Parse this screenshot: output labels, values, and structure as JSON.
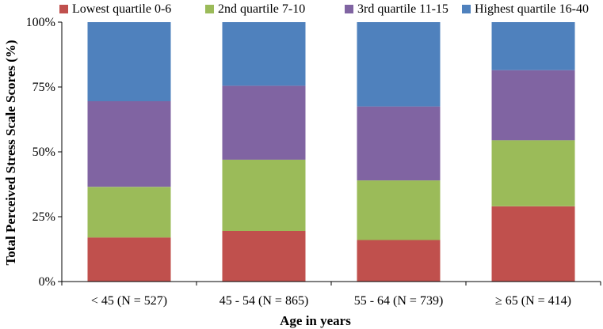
{
  "chart_data": {
    "type": "bar",
    "stacked": true,
    "categories": [
      "< 45 (N = 527)",
      "45 - 54 (N = 865)",
      "55 - 64 (N = 739)",
      "≥ 65 (N = 414)"
    ],
    "series": [
      {
        "name": "Lowest quartile 0-6",
        "color": "#C0504D",
        "values": [
          17,
          19.5,
          16,
          29
        ]
      },
      {
        "name": "2nd quartile 7-10",
        "color": "#9BBB59",
        "values": [
          19.5,
          27.5,
          23,
          25.5
        ]
      },
      {
        "name": "3rd quartile 11-15",
        "color": "#8064A2",
        "values": [
          33,
          28.5,
          28.5,
          27
        ]
      },
      {
        "name": "Highest quartile 16-40",
        "color": "#4F81BD",
        "values": [
          30.5,
          24.5,
          32.5,
          18.5
        ]
      }
    ],
    "xlabel": "Age in years",
    "ylabel": "Total Perceived Stress Scale Scores (%)",
    "ylim": [
      0,
      100
    ],
    "yticks": [
      "0%",
      "25%",
      "50%",
      "75%",
      "100%"
    ],
    "legend": "top",
    "grid": false
  }
}
